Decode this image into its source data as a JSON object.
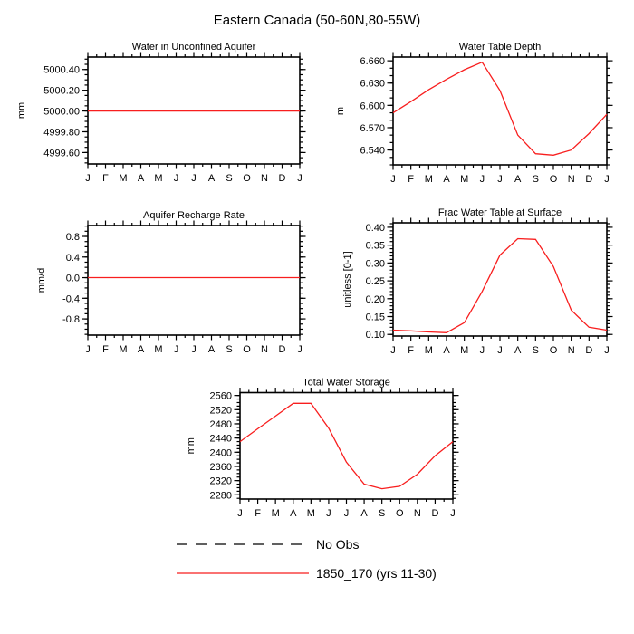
{
  "title": "Eastern Canada (50-60N,80-55W)",
  "months": [
    "J",
    "F",
    "M",
    "A",
    "M",
    "J",
    "J",
    "A",
    "S",
    "O",
    "N",
    "D",
    "J"
  ],
  "colors": {
    "series": "#f81e1e",
    "axis": "#000000",
    "background": "#ffffff"
  },
  "chart_data": [
    {
      "type": "line",
      "title": "Water in Unconfined Aquifer",
      "ylabel": "mm",
      "categories": [
        "J",
        "F",
        "M",
        "A",
        "M",
        "J",
        "J",
        "A",
        "S",
        "O",
        "N",
        "D",
        "J"
      ],
      "values": [
        5000.0,
        5000.0,
        5000.0,
        5000.0,
        5000.0,
        5000.0,
        5000.0,
        5000.0,
        5000.0,
        5000.0,
        5000.0,
        5000.0,
        5000.0
      ],
      "ylim": [
        4999.49,
        5000.52
      ],
      "yticks": [
        4999.6,
        4999.8,
        5000.0,
        5000.2,
        5000.4
      ],
      "ytick_labels": [
        "4999.60",
        "4999.80",
        "5000.00",
        "5000.20",
        "5000.40"
      ],
      "minor_step": 0.05
    },
    {
      "type": "line",
      "title": "Water Table Depth",
      "ylabel": "m",
      "categories": [
        "J",
        "F",
        "M",
        "A",
        "M",
        "J",
        "J",
        "A",
        "S",
        "O",
        "N",
        "D",
        "J"
      ],
      "values": [
        6.59,
        6.605,
        6.621,
        6.635,
        6.648,
        6.658,
        6.62,
        6.56,
        6.535,
        6.533,
        6.54,
        6.562,
        6.588
      ],
      "ylim": [
        6.52,
        6.665
      ],
      "yticks": [
        6.54,
        6.57,
        6.6,
        6.63,
        6.66
      ],
      "ytick_labels": [
        "6.540",
        "6.570",
        "6.600",
        "6.630",
        "6.660"
      ],
      "minor_step": 0.01
    },
    {
      "type": "line",
      "title": "Aquifer Recharge Rate",
      "ylabel": "mm/d",
      "categories": [
        "J",
        "F",
        "M",
        "A",
        "M",
        "J",
        "J",
        "A",
        "S",
        "O",
        "N",
        "D",
        "J"
      ],
      "values": [
        0.0,
        0.0,
        0.0,
        0.0,
        0.0,
        0.0,
        0.0,
        0.0,
        0.0,
        0.0,
        0.0,
        0.0,
        0.0
      ],
      "ylim": [
        -1.115,
        1.011
      ],
      "yticks": [
        -0.8,
        -0.4,
        0.0,
        0.4,
        0.8
      ],
      "ytick_labels": [
        "-0.8",
        "-0.4",
        "0.0",
        "0.4",
        "0.8"
      ],
      "minor_step": 0.1
    },
    {
      "type": "line",
      "title": "Frac Water Table at Surface",
      "ylabel": "unitless [0-1]",
      "categories": [
        "J",
        "F",
        "M",
        "A",
        "M",
        "J",
        "J",
        "A",
        "S",
        "O",
        "N",
        "D",
        "J"
      ],
      "values": [
        0.112,
        0.11,
        0.107,
        0.105,
        0.133,
        0.22,
        0.322,
        0.368,
        0.366,
        0.29,
        0.168,
        0.12,
        0.112
      ],
      "ylim": [
        0.0955,
        0.4125
      ],
      "yticks": [
        0.1,
        0.15,
        0.2,
        0.25,
        0.3,
        0.35,
        0.4
      ],
      "ytick_labels": [
        "0.10",
        "0.15",
        "0.20",
        "0.25",
        "0.30",
        "0.35",
        "0.40"
      ],
      "minor_step": 0.01
    },
    {
      "type": "line",
      "title": "Total Water Storage",
      "ylabel": "mm",
      "categories": [
        "J",
        "F",
        "M",
        "A",
        "M",
        "J",
        "J",
        "A",
        "S",
        "O",
        "N",
        "D",
        "J"
      ],
      "values": [
        2430,
        2466,
        2502,
        2538,
        2538,
        2468,
        2372,
        2310,
        2297,
        2304,
        2338,
        2390,
        2430
      ],
      "ylim": [
        2268,
        2568
      ],
      "yticks": [
        2280,
        2320,
        2360,
        2400,
        2440,
        2480,
        2520,
        2560
      ],
      "ytick_labels": [
        "2280",
        "2320",
        "2360",
        "2400",
        "2440",
        "2480",
        "2520",
        "2560"
      ],
      "minor_step": 10
    }
  ],
  "legend": {
    "items": [
      {
        "label": "No Obs",
        "line_style": "dashed",
        "color": "#000000"
      },
      {
        "label": "1850_170 (yrs 11-30)",
        "line_style": "solid",
        "color": "#f81e1e"
      }
    ]
  }
}
